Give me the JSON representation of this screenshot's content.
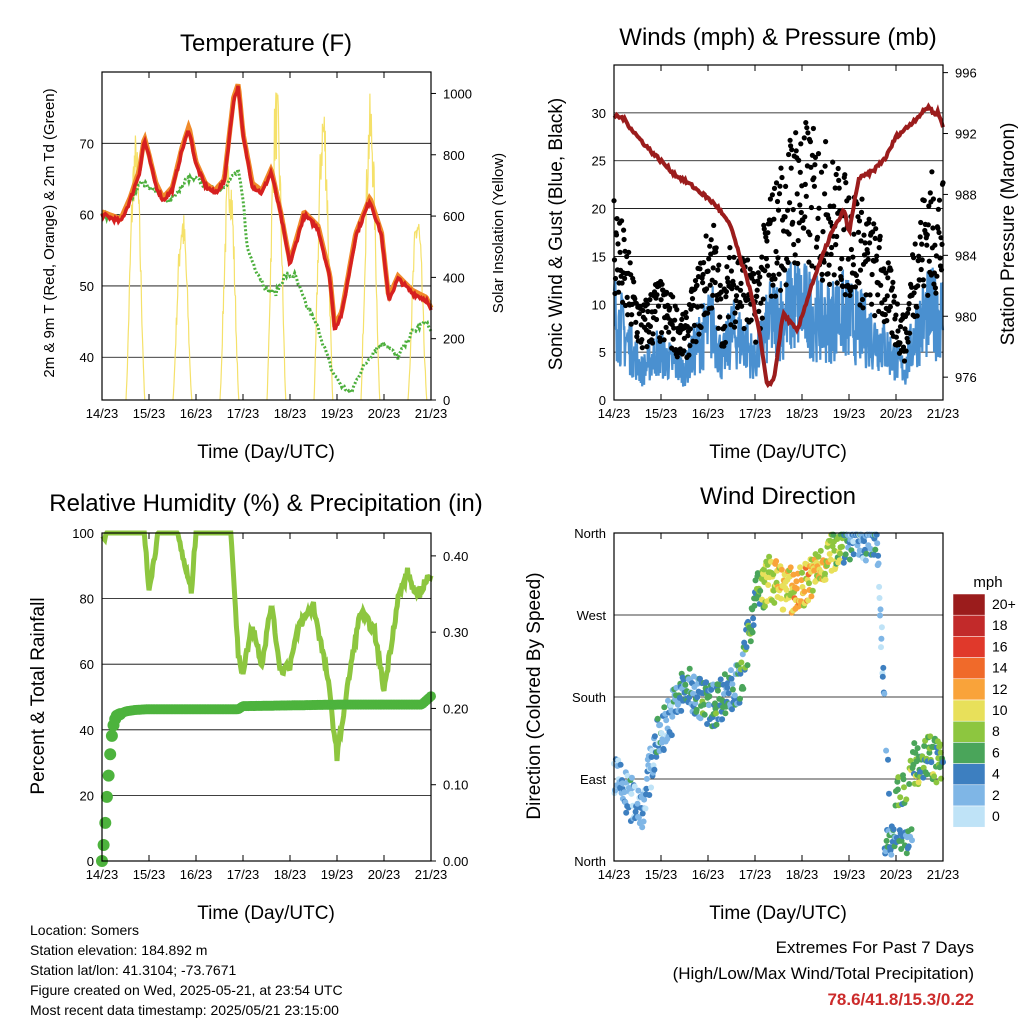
{
  "chart_data": [
    {
      "type": "line",
      "title": "Temperature (F)",
      "xlabel": "Time (Day/UTC)",
      "ylabel_left": "2m & 9m T (Red, Orange) & 2m Td (Green)",
      "ylabel_right": "Solar Insolation (Yellow)",
      "x_ticks": [
        "14/23",
        "15/23",
        "16/23",
        "17/23",
        "18/23",
        "19/23",
        "20/23",
        "21/23"
      ],
      "ylim_left": [
        34,
        80
      ],
      "yticks_left": [
        40,
        50,
        60,
        70
      ],
      "ylim_right": [
        0,
        1070
      ],
      "yticks_right": [
        0,
        200,
        400,
        600,
        800,
        1000
      ],
      "grid": "horizontal",
      "colors": {
        "t2m": "#d62020",
        "t9m": "#f08a2a",
        "td2m": "#4caf3c",
        "solar": "#f5e16a"
      },
      "series": [
        {
          "key": "t2m",
          "x": [
            0,
            0.2,
            0.4,
            0.6,
            0.8,
            0.9,
            1.0,
            1.15,
            1.3,
            1.5,
            1.7,
            1.85,
            2.0,
            2.2,
            2.4,
            2.6,
            2.8,
            2.9,
            3.0,
            3.2,
            3.4,
            3.6,
            3.8,
            4.0,
            4.3,
            4.6,
            4.85,
            4.95,
            5.1,
            5.4,
            5.7,
            5.95,
            6.1,
            6.3,
            6.6,
            6.9,
            7.0
          ],
          "y": [
            60,
            59.5,
            59,
            62,
            66,
            70.5,
            68,
            64,
            62,
            63.5,
            69,
            72,
            67,
            64,
            63,
            64.5,
            76,
            78,
            71,
            64,
            63,
            66,
            60,
            53,
            60,
            58,
            51,
            44,
            46,
            57,
            62,
            57,
            48,
            51,
            49,
            48,
            46.5
          ]
        },
        {
          "key": "td2m",
          "x": [
            0,
            0.2,
            0.4,
            0.6,
            0.8,
            1.0,
            1.2,
            1.4,
            1.6,
            1.8,
            2.0,
            2.2,
            2.4,
            2.6,
            2.8,
            2.9,
            3.0,
            3.1,
            3.3,
            3.5,
            3.7,
            3.9,
            4.1,
            4.3,
            4.6,
            4.9,
            5.1,
            5.3,
            5.5,
            5.8,
            6.0,
            6.3,
            6.6,
            6.9,
            7.0
          ],
          "y": [
            60,
            59.5,
            59.5,
            62,
            64.5,
            64,
            63,
            62,
            63,
            65,
            65,
            64,
            63.5,
            64,
            65.5,
            66,
            62,
            55,
            52,
            49.5,
            49,
            51.5,
            51.5,
            48,
            44,
            38,
            36,
            35,
            38,
            41,
            42,
            40,
            43.5,
            45,
            43.5
          ]
        },
        {
          "key": "solar",
          "peaks": [
            {
              "day": 0,
              "center": 0.71,
              "peak": 880
            },
            {
              "day": 1,
              "center": 1.71,
              "peak": 640
            },
            {
              "day": 2,
              "center": 2.71,
              "peak": 810
            },
            {
              "day": 3,
              "center": 3.71,
              "peak": 1035
            },
            {
              "day": 4,
              "center": 4.71,
              "peak": 1000
            },
            {
              "day": 5,
              "center": 5.71,
              "peak": 1005
            },
            {
              "day": 6,
              "center": 6.71,
              "peak": 640
            }
          ]
        }
      ]
    },
    {
      "type": "scatter",
      "title": "Winds (mph) & Pressure (mb)",
      "xlabel": "Time (Day/UTC)",
      "ylabel_left": "Sonic Wind & Gust (Blue, Black)",
      "ylabel_right": "Station Pressure (Maroon)",
      "x_ticks": [
        "14/23",
        "15/23",
        "16/23",
        "17/23",
        "18/23",
        "19/23",
        "20/23",
        "21/23"
      ],
      "ylim_left": [
        0,
        35
      ],
      "yticks_left": [
        0,
        5,
        10,
        15,
        20,
        25,
        30
      ],
      "ylim_right": [
        974.5,
        996.5
      ],
      "yticks_right": [
        976,
        980,
        984,
        988,
        992,
        996
      ],
      "grid": "horizontal",
      "colors": {
        "wind": "#4a90d0",
        "gust": "#000000",
        "pressure": "#9b1c1c"
      },
      "series": [
        {
          "key": "wind",
          "x": [
            0,
            0.3,
            0.6,
            0.9,
            1.2,
            1.5,
            1.8,
            2.1,
            2.3,
            2.5,
            2.8,
            3.0,
            3.3,
            3.6,
            3.9,
            4.2,
            4.5,
            4.8,
            5.1,
            5.4,
            5.7,
            6.0,
            6.2,
            6.4,
            6.7,
            7.0
          ],
          "y": [
            9,
            6,
            3,
            5,
            4,
            3,
            6,
            8,
            4,
            7,
            6,
            4,
            8,
            9,
            10,
            9,
            8,
            9,
            8,
            7,
            6,
            4,
            3,
            7,
            9,
            9
          ]
        },
        {
          "key": "gust",
          "x": [
            0,
            0.3,
            0.6,
            0.9,
            1.2,
            1.5,
            1.8,
            2.1,
            2.3,
            2.5,
            2.8,
            3.0,
            3.3,
            3.6,
            3.9,
            4.2,
            4.5,
            4.8,
            5.1,
            5.4,
            5.7,
            6.0,
            6.2,
            6.4,
            6.7,
            7.0
          ],
          "y": [
            16,
            11,
            7,
            9,
            8,
            6,
            10,
            14,
            8,
            12,
            11,
            9,
            15,
            18,
            21,
            20,
            19,
            17,
            16,
            14,
            12,
            8,
            6,
            13,
            17,
            16
          ]
        },
        {
          "key": "pressure",
          "x": [
            0,
            0.2,
            0.5,
            0.8,
            1.0,
            1.3,
            1.6,
            1.9,
            2.2,
            2.5,
            2.7,
            2.9,
            3.1,
            3.25,
            3.4,
            3.6,
            3.9,
            4.2,
            4.6,
            4.9,
            5.0,
            5.2,
            5.5,
            5.8,
            6.0,
            6.2,
            6.5,
            6.7,
            6.8,
            6.9,
            7.0
          ],
          "y": [
            993.2,
            993,
            991.8,
            990.8,
            990.2,
            989.3,
            988.7,
            988,
            987.2,
            985.8,
            983.6,
            981.8,
            978.8,
            975.5,
            975.8,
            980.2,
            979,
            982,
            985.3,
            987,
            985.4,
            989,
            989.5,
            990.5,
            991.8,
            992.3,
            993.2,
            993.8,
            993.3,
            993.4,
            992.4
          ]
        }
      ]
    },
    {
      "type": "line",
      "title": "Relative Humidity (%) & Precipitation (in)",
      "xlabel": "Time (Day/UTC)",
      "ylabel_left": "Percent & Total Rainfall",
      "x_ticks": [
        "14/23",
        "15/23",
        "16/23",
        "17/23",
        "18/23",
        "19/23",
        "20/23",
        "21/23"
      ],
      "ylim_left": [
        0,
        100
      ],
      "yticks_left": [
        0,
        20,
        40,
        60,
        80,
        100
      ],
      "ylim_right": [
        0,
        0.43
      ],
      "yticks_right": [
        "0.00",
        "0.10",
        "0.20",
        "0.30",
        "0.40"
      ],
      "grid": "horizontal",
      "colors": {
        "rh": "#8dc63f",
        "precip": "#4db33d"
      },
      "series": [
        {
          "key": "rh",
          "x": [
            0,
            0.1,
            0.3,
            0.9,
            1.0,
            1.1,
            1.2,
            1.3,
            1.4,
            1.6,
            1.9,
            2.0,
            2.2,
            2.3,
            2.5,
            2.75,
            2.9,
            3.0,
            3.2,
            3.4,
            3.6,
            3.8,
            4.0,
            4.2,
            4.5,
            4.8,
            5.0,
            5.3,
            5.5,
            5.8,
            6.0,
            6.3,
            6.5,
            6.7,
            6.9,
            7.0
          ],
          "y": [
            98,
            100,
            100,
            100,
            82,
            92,
            100,
            100,
            100,
            100,
            82,
            100,
            100,
            100,
            100,
            100,
            62,
            58,
            72,
            60,
            78,
            58,
            60,
            72,
            78,
            56,
            32,
            60,
            76,
            70,
            52,
            80,
            88,
            80,
            86,
            86
          ]
        },
        {
          "key": "precip",
          "x": [
            0,
            0.05,
            0.1,
            0.15,
            0.2,
            0.25,
            0.3,
            0.4,
            0.5,
            0.7,
            1.0,
            2.0,
            2.9,
            3.0,
            4.0,
            5.0,
            6.0,
            6.8,
            7.0
          ],
          "y": [
            0,
            0.03,
            0.08,
            0.12,
            0.16,
            0.18,
            0.19,
            0.193,
            0.196,
            0.198,
            0.199,
            0.199,
            0.199,
            0.203,
            0.204,
            0.205,
            0.205,
            0.205,
            0.216
          ]
        }
      ]
    },
    {
      "type": "scatter",
      "title": "Wind Direction",
      "xlabel": "Time (Day/UTC)",
      "ylabel_left": "Direction (Colored By Speed)",
      "x_ticks": [
        "14/23",
        "15/23",
        "16/23",
        "17/23",
        "18/23",
        "19/23",
        "20/23",
        "21/23"
      ],
      "y_ticks": [
        "North",
        "East",
        "South",
        "West",
        "North"
      ],
      "ylim_left": [
        0,
        360
      ],
      "grid": "horizontal",
      "colorbar": {
        "unit": "mph",
        "labels": [
          "20+",
          "18",
          "16",
          "14",
          "12",
          "10",
          "8",
          "6",
          "4",
          "2",
          "0"
        ],
        "colors": [
          "#9b1c1c",
          "#c22a2a",
          "#e0392b",
          "#f06a2a",
          "#f9a33a",
          "#e8e05a",
          "#8dc63f",
          "#4aa55a",
          "#3d7fc0",
          "#7fb6e6",
          "#bfe3f7"
        ]
      },
      "series": [
        {
          "key": "direction",
          "x": [
            0,
            0.3,
            0.6,
            0.9,
            1.2,
            1.5,
            1.8,
            2.1,
            2.4,
            2.7,
            3.0,
            3.3,
            3.6,
            3.9,
            4.2,
            4.5,
            4.8,
            5.0,
            5.3,
            5.6,
            5.9,
            6.0,
            6.3,
            6.6,
            6.9,
            7.0
          ],
          "y": [
            95,
            70,
            60,
            130,
            160,
            190,
            180,
            170,
            185,
            195,
            290,
            310,
            300,
            295,
            310,
            330,
            350,
            355,
            355,
            350,
            10,
            70,
            100,
            115,
            110,
            100
          ]
        }
      ]
    }
  ],
  "info": {
    "location": "Location: Somers",
    "elevation": "Station elevation: 184.892 m",
    "latlon": "Station lat/lon: 41.3104; -73.7671",
    "created": "Figure created on Wed, 2025-05-21, at 23:54 UTC",
    "recent": "Most recent data timestamp: 2025/05/21 23:15:00"
  },
  "extremes": {
    "title": "Extremes For Past 7 Days",
    "subtitle": "(High/Low/Max Wind/Total Precipitation)",
    "values": "78.6/41.8/15.3/0.22"
  }
}
